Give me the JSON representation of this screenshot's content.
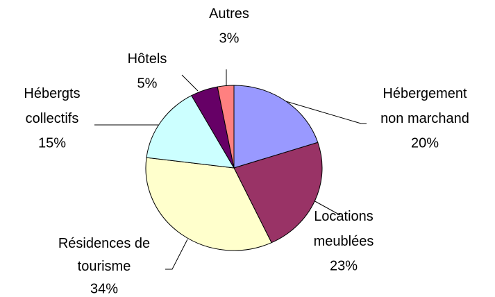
{
  "chart_data": {
    "type": "pie",
    "categories": [
      "Hébergement\nnon marchand",
      "Locations\nmeublées",
      "Résidences de\ntourisme",
      "Hébergts\ncollectifs",
      "Hôtels",
      "Autres"
    ],
    "values": [
      20,
      23,
      34,
      15,
      5,
      3
    ],
    "value_labels": [
      "20%",
      "23%",
      "34%",
      "15%",
      "5%",
      "3%"
    ],
    "colors": [
      "#9999ff",
      "#993366",
      "#ffffcc",
      "#ccffff",
      "#660066",
      "#ff8080"
    ]
  }
}
